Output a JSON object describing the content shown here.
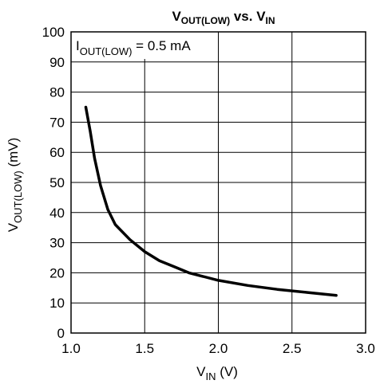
{
  "chart_data": {
    "type": "line",
    "title": {
      "main": "V",
      "main_sub": "OUT(LOW)",
      "mid": " vs. V",
      "mid_sub": "IN"
    },
    "xlabel": {
      "main": "V",
      "sub": "IN",
      "unit": " (V)"
    },
    "ylabel": {
      "main": "V",
      "sub": "OUT(LOW)",
      "unit": " (mV)"
    },
    "annotation": {
      "main": "I",
      "sub": "OUT(LOW)",
      "rest": " = 0.5 mA"
    },
    "xlim": [
      1.0,
      3.0
    ],
    "ylim": [
      0,
      100
    ],
    "x_ticks": [
      "1.0",
      "1.5",
      "2.0",
      "2.5",
      "3.0"
    ],
    "y_ticks": [
      "0",
      "10",
      "20",
      "30",
      "40",
      "50",
      "60",
      "70",
      "80",
      "90",
      "100"
    ],
    "grid": true,
    "series": [
      {
        "x": [
          1.1,
          1.13,
          1.16,
          1.2,
          1.25,
          1.3,
          1.4,
          1.5,
          1.6,
          1.7,
          1.8,
          2.0,
          2.2,
          2.4,
          2.6,
          2.8
        ],
        "y": [
          75,
          67,
          58,
          49,
          41,
          36,
          31,
          27,
          24,
          22,
          20,
          17.5,
          15.8,
          14.5,
          13.5,
          12.5
        ]
      }
    ],
    "line_color": "#000000"
  }
}
